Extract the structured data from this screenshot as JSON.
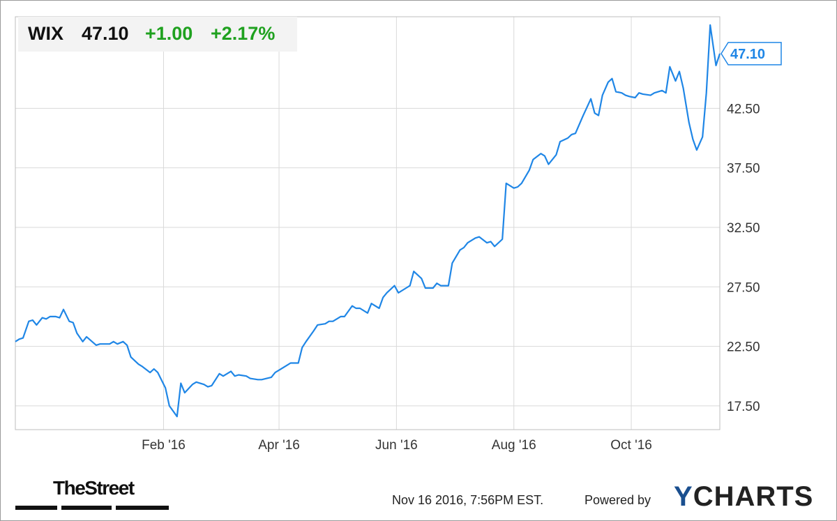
{
  "header": {
    "ticker": "WIX",
    "price": "47.10",
    "change": "+1.00",
    "change_pct": "+2.17%",
    "change_color": "#1fa11f"
  },
  "footer": {
    "timestamp": "Nov 16 2016, 7:56PM EST.",
    "powered_by": "Powered by",
    "brand_prefix": "Y",
    "brand_rest": "CHARTS",
    "publisher": "TheStreet"
  },
  "colors": {
    "line": "#1f86e6",
    "grid": "#d9d9d9",
    "plot_border": "#bdbdbd",
    "price_tag": "#1f86e6"
  },
  "chart_data": {
    "type": "line",
    "title": "",
    "xlabel": "",
    "ylabel": "",
    "ylim": [
      15.5,
      50.2
    ],
    "xlim": [
      "2015-11-16",
      "2016-11-16"
    ],
    "y_ticks": [
      "17.50",
      "22.50",
      "27.50",
      "32.50",
      "37.50",
      "42.50"
    ],
    "x_ticks": [
      {
        "date": "2016-02-01",
        "label": "Feb '16"
      },
      {
        "date": "2016-04-01",
        "label": "Apr '16"
      },
      {
        "date": "2016-06-01",
        "label": "Jun '16"
      },
      {
        "date": "2016-08-01",
        "label": "Aug '16"
      },
      {
        "date": "2016-10-01",
        "label": "Oct '16"
      }
    ],
    "last_value_label": "47.10",
    "series": [
      {
        "points": [
          [
            "2015-11-16",
            22.9
          ],
          [
            "2015-11-18",
            23.1
          ],
          [
            "2015-11-20",
            23.2
          ],
          [
            "2015-11-23",
            24.6
          ],
          [
            "2015-11-25",
            24.7
          ],
          [
            "2015-11-27",
            24.3
          ],
          [
            "2015-11-30",
            24.9
          ],
          [
            "2015-12-02",
            24.8
          ],
          [
            "2015-12-04",
            25.0
          ],
          [
            "2015-12-07",
            25.0
          ],
          [
            "2015-12-09",
            24.9
          ],
          [
            "2015-12-11",
            25.6
          ],
          [
            "2015-12-14",
            24.6
          ],
          [
            "2015-12-16",
            24.5
          ],
          [
            "2015-12-18",
            23.6
          ],
          [
            "2015-12-21",
            22.9
          ],
          [
            "2015-12-23",
            23.3
          ],
          [
            "2015-12-28",
            22.6
          ],
          [
            "2015-12-30",
            22.7
          ],
          [
            "2016-01-04",
            22.7
          ],
          [
            "2016-01-06",
            22.9
          ],
          [
            "2016-01-08",
            22.7
          ],
          [
            "2016-01-11",
            22.9
          ],
          [
            "2016-01-13",
            22.6
          ],
          [
            "2016-01-15",
            21.6
          ],
          [
            "2016-01-19",
            21.0
          ],
          [
            "2016-01-21",
            20.8
          ],
          [
            "2016-01-25",
            20.3
          ],
          [
            "2016-01-27",
            20.6
          ],
          [
            "2016-01-29",
            20.3
          ],
          [
            "2016-02-02",
            19.0
          ],
          [
            "2016-02-04",
            17.5
          ],
          [
            "2016-02-08",
            16.6
          ],
          [
            "2016-02-10",
            19.4
          ],
          [
            "2016-02-12",
            18.6
          ],
          [
            "2016-02-16",
            19.3
          ],
          [
            "2016-02-18",
            19.5
          ],
          [
            "2016-02-22",
            19.3
          ],
          [
            "2016-02-24",
            19.1
          ],
          [
            "2016-02-26",
            19.2
          ],
          [
            "2016-03-01",
            20.2
          ],
          [
            "2016-03-03",
            20.0
          ],
          [
            "2016-03-07",
            20.4
          ],
          [
            "2016-03-09",
            20.0
          ],
          [
            "2016-03-11",
            20.1
          ],
          [
            "2016-03-15",
            20.0
          ],
          [
            "2016-03-17",
            19.8
          ],
          [
            "2016-03-21",
            19.7
          ],
          [
            "2016-03-23",
            19.7
          ],
          [
            "2016-03-28",
            19.9
          ],
          [
            "2016-03-30",
            20.3
          ],
          [
            "2016-04-01",
            20.5
          ],
          [
            "2016-04-05",
            20.9
          ],
          [
            "2016-04-07",
            21.1
          ],
          [
            "2016-04-11",
            21.1
          ],
          [
            "2016-04-13",
            22.4
          ],
          [
            "2016-04-15",
            22.9
          ],
          [
            "2016-04-19",
            23.8
          ],
          [
            "2016-04-21",
            24.3
          ],
          [
            "2016-04-25",
            24.4
          ],
          [
            "2016-04-27",
            24.6
          ],
          [
            "2016-04-29",
            24.6
          ],
          [
            "2016-05-03",
            25.0
          ],
          [
            "2016-05-05",
            25.0
          ],
          [
            "2016-05-09",
            25.9
          ],
          [
            "2016-05-11",
            25.7
          ],
          [
            "2016-05-13",
            25.7
          ],
          [
            "2016-05-17",
            25.3
          ],
          [
            "2016-05-19",
            26.1
          ],
          [
            "2016-05-23",
            25.7
          ],
          [
            "2016-05-25",
            26.6
          ],
          [
            "2016-05-27",
            27.0
          ],
          [
            "2016-05-31",
            27.6
          ],
          [
            "2016-06-02",
            27.0
          ],
          [
            "2016-06-06",
            27.4
          ],
          [
            "2016-06-08",
            27.6
          ],
          [
            "2016-06-10",
            28.8
          ],
          [
            "2016-06-14",
            28.2
          ],
          [
            "2016-06-16",
            27.4
          ],
          [
            "2016-06-20",
            27.4
          ],
          [
            "2016-06-22",
            27.8
          ],
          [
            "2016-06-24",
            27.6
          ],
          [
            "2016-06-28",
            27.6
          ],
          [
            "2016-06-30",
            29.5
          ],
          [
            "2016-07-04",
            30.6
          ],
          [
            "2016-07-06",
            30.8
          ],
          [
            "2016-07-08",
            31.2
          ],
          [
            "2016-07-12",
            31.6
          ],
          [
            "2016-07-14",
            31.7
          ],
          [
            "2016-07-18",
            31.2
          ],
          [
            "2016-07-20",
            31.3
          ],
          [
            "2016-07-22",
            30.9
          ],
          [
            "2016-07-26",
            31.5
          ],
          [
            "2016-07-28",
            36.2
          ],
          [
            "2016-08-01",
            35.8
          ],
          [
            "2016-08-03",
            35.9
          ],
          [
            "2016-08-05",
            36.2
          ],
          [
            "2016-08-09",
            37.3
          ],
          [
            "2016-08-11",
            38.2
          ],
          [
            "2016-08-15",
            38.7
          ],
          [
            "2016-08-17",
            38.5
          ],
          [
            "2016-08-19",
            37.8
          ],
          [
            "2016-08-23",
            38.6
          ],
          [
            "2016-08-25",
            39.7
          ],
          [
            "2016-08-29",
            40.0
          ],
          [
            "2016-08-31",
            40.3
          ],
          [
            "2016-09-02",
            40.4
          ],
          [
            "2016-09-06",
            41.9
          ],
          [
            "2016-09-08",
            42.6
          ],
          [
            "2016-09-10",
            43.3
          ],
          [
            "2016-09-12",
            42.1
          ],
          [
            "2016-09-14",
            41.9
          ],
          [
            "2016-09-16",
            43.6
          ],
          [
            "2016-09-19",
            44.7
          ],
          [
            "2016-09-21",
            45.0
          ],
          [
            "2016-09-23",
            43.9
          ],
          [
            "2016-09-26",
            43.8
          ],
          [
            "2016-09-28",
            43.6
          ],
          [
            "2016-09-30",
            43.5
          ],
          [
            "2016-10-03",
            43.4
          ],
          [
            "2016-10-05",
            43.8
          ],
          [
            "2016-10-07",
            43.7
          ],
          [
            "2016-10-11",
            43.6
          ],
          [
            "2016-10-13",
            43.8
          ],
          [
            "2016-10-17",
            44.0
          ],
          [
            "2016-10-19",
            43.8
          ],
          [
            "2016-10-21",
            46.0
          ],
          [
            "2016-10-24",
            44.8
          ],
          [
            "2016-10-26",
            45.6
          ],
          [
            "2016-10-28",
            44.2
          ],
          [
            "2016-10-31",
            41.3
          ],
          [
            "2016-11-02",
            39.9
          ],
          [
            "2016-11-04",
            39.0
          ],
          [
            "2016-11-07",
            40.1
          ],
          [
            "2016-11-09",
            43.8
          ],
          [
            "2016-11-11",
            49.5
          ],
          [
            "2016-11-14",
            46.1
          ],
          [
            "2016-11-16",
            47.1
          ]
        ]
      }
    ]
  }
}
